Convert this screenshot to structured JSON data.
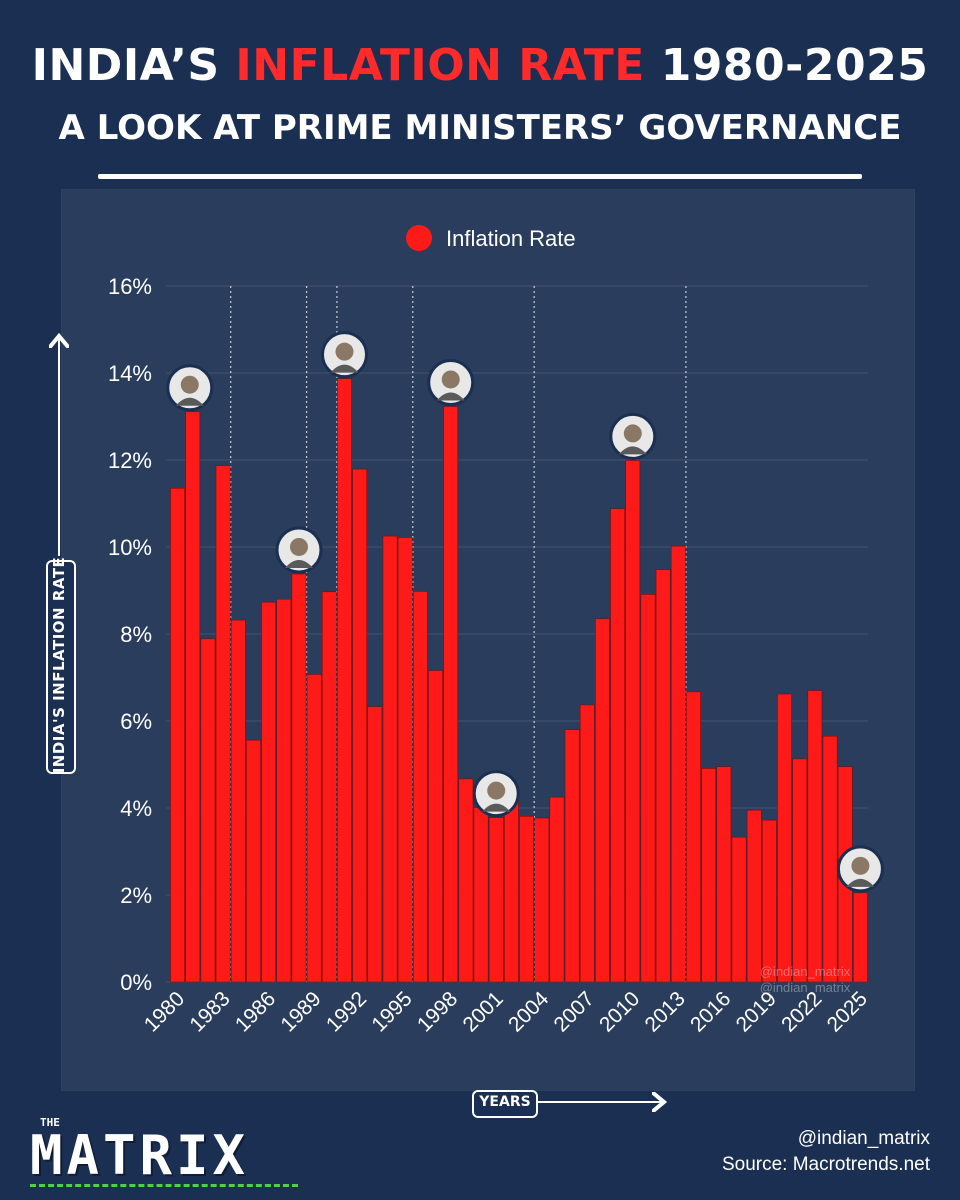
{
  "header": {
    "title_part1": "INDIA’S ",
    "title_accent": "INFLATION RATE",
    "title_part2": " 1980-2025",
    "subtitle": "A LOOK AT PRIME MINISTERS’ GOVERNANCE"
  },
  "colors": {
    "bar": "#ff1a1a",
    "accent": "#ff2a2a",
    "background": "#1b2f52",
    "panel": "#2a3d5c"
  },
  "chart_data": {
    "type": "bar",
    "title": "",
    "xlabel": "YEARS",
    "ylabel": "INDIA'S INFLATION RATE",
    "ylim": [
      0,
      16
    ],
    "y_ticks": [
      "0%",
      "2%",
      "4%",
      "6%",
      "8%",
      "10%",
      "12%",
      "14%",
      "16%"
    ],
    "x_tick_labels": [
      "1980",
      "1983",
      "1986",
      "1989",
      "1992",
      "1995",
      "1998",
      "2001",
      "2004",
      "2007",
      "2010",
      "2013",
      "2016",
      "2019",
      "2022",
      "2025"
    ],
    "legend": {
      "position": "top-center"
    },
    "grid": true,
    "categories": [
      1980,
      1981,
      1982,
      1983,
      1984,
      1985,
      1986,
      1987,
      1988,
      1989,
      1990,
      1991,
      1992,
      1993,
      1994,
      1995,
      1996,
      1997,
      1998,
      1999,
      2000,
      2001,
      2002,
      2003,
      2004,
      2005,
      2006,
      2007,
      2008,
      2009,
      2010,
      2011,
      2012,
      2013,
      2014,
      2015,
      2016,
      2017,
      2018,
      2019,
      2020,
      2021,
      2022,
      2023,
      2024,
      2025
    ],
    "series": [
      {
        "name": "Inflation Rate",
        "values": [
          11.35,
          13.11,
          7.89,
          11.87,
          8.32,
          5.56,
          8.73,
          8.8,
          9.38,
          7.07,
          8.97,
          13.87,
          11.79,
          6.33,
          10.25,
          10.22,
          8.98,
          7.16,
          13.23,
          4.67,
          4.01,
          3.78,
          4.3,
          3.81,
          3.77,
          4.25,
          5.8,
          6.37,
          8.35,
          10.88,
          11.99,
          8.91,
          9.48,
          10.02,
          6.67,
          4.91,
          4.95,
          3.33,
          3.95,
          3.72,
          6.62,
          5.13,
          6.7,
          5.65,
          4.95,
          2.05
        ]
      }
    ],
    "pm_tenure_dividers": [
      1984,
      1989,
      1991,
      1996,
      2004,
      2014
    ],
    "pm_portrait_years": [
      1981,
      1988,
      1991,
      1998,
      2001,
      2010,
      2025
    ]
  },
  "footer": {
    "logo_small": "THE",
    "logo_big": "MATRIX",
    "handle": "@indian_matrix",
    "source": "Source: Macrotrends.net",
    "watermark": "@indian_matrix"
  }
}
